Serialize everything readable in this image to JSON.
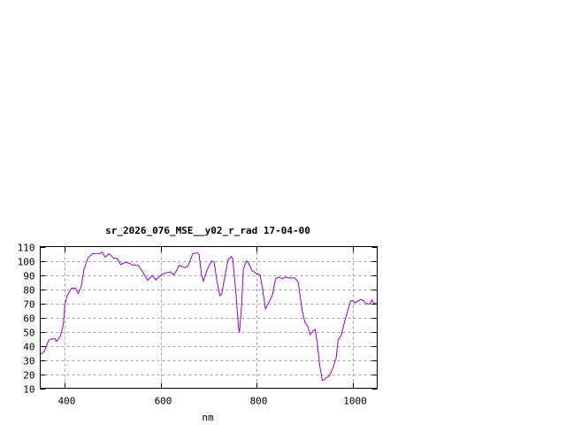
{
  "chart_data": {
    "type": "line",
    "title": "sr_2026_076_MSE__y02_r_rad 17-04-00",
    "xlabel": "nm",
    "ylabel": "",
    "xlim": [
      350,
      1050
    ],
    "ylim": [
      10,
      110
    ],
    "xticks": [
      400,
      600,
      800,
      1000
    ],
    "yticks": [
      10,
      20,
      30,
      40,
      50,
      60,
      70,
      80,
      90,
      100,
      110
    ],
    "grid": true,
    "line_color": "#9400d3",
    "grid_color": "#a0a0a0",
    "series": [
      {
        "x": [
          350,
          358,
          368,
          380,
          384,
          392,
          398,
          401,
          406,
          415,
          423,
          429,
          435,
          441,
          449,
          459,
          474,
          479,
          485,
          493,
          502,
          510,
          517,
          526,
          535,
          541,
          554,
          563,
          573,
          583,
          590,
          600,
          609,
          621,
          628,
          639,
          651,
          657,
          667,
          676,
          680,
          685,
          689,
          697,
          706,
          711,
          717,
          723,
          727,
          732,
          740,
          747,
          750,
          757,
          762,
          764,
          768,
          772,
          778,
          782,
          790,
          799,
          807,
          812,
          818,
          824,
          832,
          839,
          845,
          853,
          859,
          867,
          879,
          886,
          894,
          900,
          906,
          911,
          916,
          921,
          925,
          931,
          936,
          940,
          945,
          951,
          958,
          965,
          969,
          976,
          982,
          989,
          995,
          1000,
          1004,
          1010,
          1016,
          1022,
          1027,
          1035,
          1039,
          1043,
          1049
        ],
        "y": [
          33.8,
          35.8,
          44.2,
          45.2,
          43,
          47,
          54.6,
          69,
          75.4,
          80.6,
          80.6,
          77,
          81.7,
          94,
          102,
          105,
          105.2,
          106,
          102.5,
          105,
          102,
          101.5,
          97.3,
          98.8,
          98.3,
          97,
          96.7,
          92,
          86.3,
          89.6,
          86.5,
          89.6,
          91.3,
          92,
          90,
          96.7,
          95.2,
          96.3,
          105,
          105.6,
          104.6,
          90,
          85.6,
          94,
          99.8,
          99.4,
          85.8,
          75.4,
          76.5,
          85.8,
          100.4,
          102.9,
          101.5,
          75.4,
          52.5,
          49.4,
          67,
          94,
          99.8,
          98.7,
          93.1,
          91,
          90,
          79.6,
          66,
          70.2,
          75.4,
          87.3,
          88.5,
          87.3,
          88.5,
          87.9,
          87.9,
          84.8,
          65,
          56.3,
          53.5,
          47.9,
          50.4,
          51.5,
          43,
          25.4,
          15.6,
          16,
          17.5,
          18.8,
          24.4,
          31.7,
          44.2,
          47.9,
          56.7,
          65,
          71.7,
          71.7,
          70.2,
          71.7,
          72.7,
          71.7,
          69.6,
          69.6,
          72.3,
          70.2,
          69.6
        ]
      }
    ]
  }
}
